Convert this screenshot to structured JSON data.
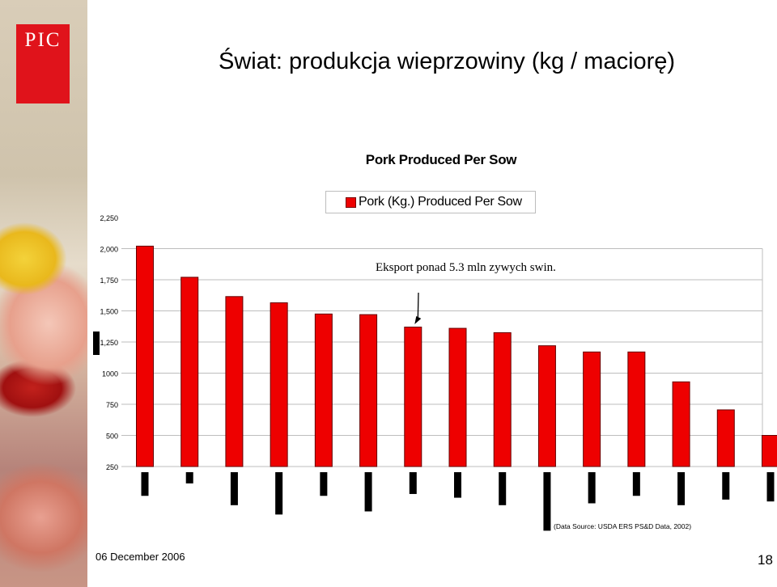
{
  "slide": {
    "logo_text": "PIC",
    "title": "Świat: produkcja wieprzowiny  (kg / maciorę)",
    "date": "06 December 2006",
    "page_number": "18"
  },
  "colors": {
    "bar": "#ee0000",
    "bar_border": "#660000",
    "lower_bar": "#000000",
    "logo": "#e0131b",
    "grid": "#bdbdbd"
  },
  "chart_data": {
    "type": "bar",
    "title": "Pork Produced Per Sow",
    "xlabel": "",
    "ylabel": "",
    "y_tick_labels": [
      "2,250",
      "2,000",
      "1,750",
      "1,500",
      "1,250",
      "1000",
      "750",
      "500",
      "250"
    ],
    "y_tick_values": [
      2250,
      2000,
      1750,
      1500,
      1250,
      1000,
      750,
      500,
      250
    ],
    "ylim": [
      250,
      2250
    ],
    "grid": true,
    "legend_position": "top",
    "series": [
      {
        "name": "Pork (Kg.) Produced Per Sow",
        "values": [
          2020,
          1770,
          1615,
          1565,
          1475,
          1470,
          1370,
          1360,
          1325,
          1220,
          1170,
          1170,
          930,
          705,
          500
        ]
      }
    ],
    "secondary_bars_relative_depth": [
      0.38,
      0.18,
      0.53,
      0.68,
      0.38,
      0.63,
      0.35,
      0.41,
      0.53,
      0.94,
      0.5,
      0.38,
      0.53,
      0.44,
      0.47
    ],
    "annotation": "Eksport ponad 5.3 mln zywych swin.",
    "annotation_target_index": 6,
    "source": "(Data Source: USDA ERS PS&D Data, 2002)"
  }
}
